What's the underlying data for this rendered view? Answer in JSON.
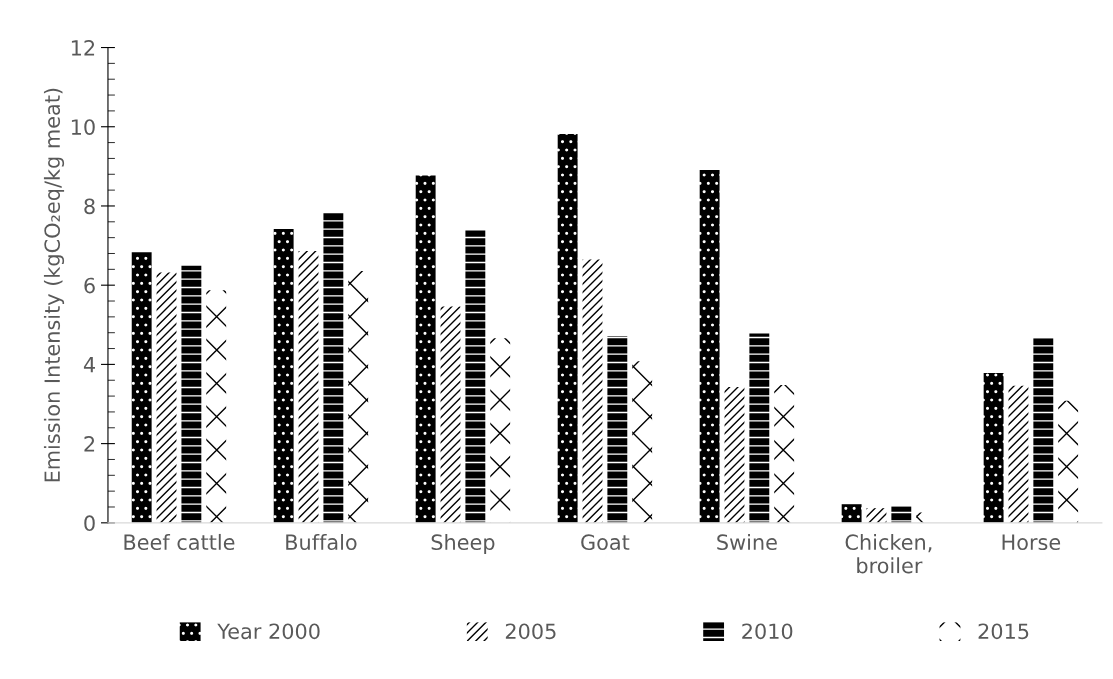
{
  "chart_data": {
    "type": "bar",
    "ylabel": "Emission Intensity (kgCO₂eq/kg meat)",
    "categories": [
      "Beef cattle",
      "Buffalo",
      "Sheep",
      "Goat",
      "Swine",
      "Chicken,\nbroiler",
      "Horse"
    ],
    "series": [
      {
        "name": "Year 2000",
        "color": "#000000",
        "values": [
          6.83,
          7.42,
          8.77,
          9.82,
          8.91,
          0.47,
          3.78
        ]
      },
      {
        "name": "2005",
        "color": "#ffffff",
        "values": [
          6.32,
          6.86,
          5.46,
          6.65,
          3.43,
          0.37,
          3.46
        ]
      },
      {
        "name": "2010",
        "color": "#000000",
        "values": [
          6.49,
          7.83,
          7.38,
          4.71,
          4.78,
          0.41,
          4.66
        ]
      },
      {
        "name": "2015",
        "color": "#ffffff",
        "values": [
          5.87,
          6.36,
          4.66,
          4.08,
          3.48,
          0.26,
          3.08
        ]
      }
    ],
    "ylim": [
      0,
      12
    ],
    "yticks": [
      0,
      2,
      4,
      6,
      8,
      10,
      12
    ],
    "grid": false,
    "legend": "bottom"
  }
}
